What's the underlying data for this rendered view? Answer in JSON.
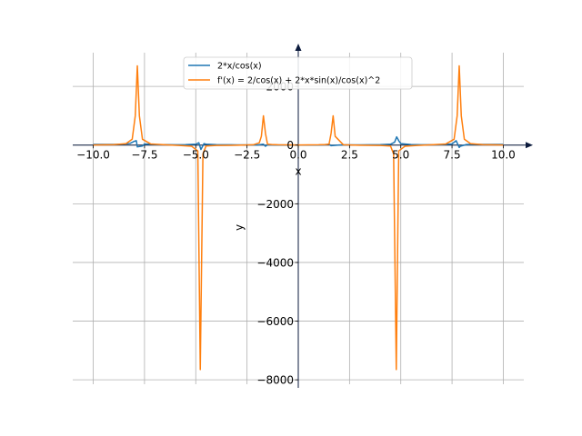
{
  "chart_data": {
    "type": "line",
    "xlabel": "x",
    "ylabel": "y",
    "xlim": [
      -11.0,
      11.0
    ],
    "ylim": [
      -8150,
      3150
    ],
    "xticks": [
      -10.0,
      -7.5,
      -5.0,
      -2.5,
      0.0,
      2.5,
      5.0,
      7.5,
      10.0
    ],
    "xtick_labels": [
      "−10.0",
      "−7.5",
      "−5.0",
      "−2.5",
      "0.0",
      "2.5",
      "5.0",
      "7.5",
      "10.0"
    ],
    "yticks": [
      -8000,
      -6000,
      -4000,
      -2000,
      0,
      2000
    ],
    "ytick_labels": [
      "−8000",
      "−6000",
      "−4000",
      "−2000",
      "0",
      "2000"
    ],
    "grid": true,
    "legend_position": "top-center",
    "series": [
      {
        "name": "2*x/cos(x)",
        "color": "#1f77b4",
        "x": [
          -10.0,
          -9.0,
          -8.5,
          -8.2,
          -8.0,
          -7.9,
          -7.85,
          -7.6,
          -7.5,
          -7.0,
          -6.0,
          -5.5,
          -5.0,
          -4.85,
          -4.75,
          -4.6,
          -4.5,
          -4.0,
          -3.0,
          -2.0,
          -1.7,
          -1.6,
          -1.5,
          -1.0,
          0.0,
          1.0,
          1.4,
          1.5,
          1.6,
          2.0,
          3.0,
          4.0,
          4.5,
          4.7,
          4.8,
          4.9,
          5.0,
          5.5,
          6.0,
          7.0,
          7.5,
          7.7,
          7.85,
          7.9,
          8.0,
          8.2,
          8.5,
          9.0,
          10.0
        ],
        "y": [
          24,
          22,
          30,
          60,
          130,
          150,
          -60,
          -30,
          40,
          20,
          12,
          15,
          30,
          80,
          -150,
          50,
          30,
          15,
          8,
          5,
          30,
          -40,
          10,
          5,
          0,
          5,
          20,
          35,
          -20,
          5,
          8,
          15,
          30,
          100,
          280,
          150,
          50,
          20,
          12,
          15,
          40,
          150,
          -80,
          -40,
          -20,
          20,
          25,
          22,
          24
        ]
      },
      {
        "name": "f'(x) = 2/cos(x) + 2*x*sin(x)/cos(x)^2",
        "color": "#ff7f0e",
        "x": [
          -10.0,
          -9.0,
          -8.4,
          -8.1,
          -7.95,
          -7.85,
          -7.75,
          -7.6,
          -7.2,
          -6.5,
          -5.8,
          -5.2,
          -4.9,
          -4.78,
          -4.65,
          -4.5,
          -4.0,
          -3.0,
          -2.2,
          -1.9,
          -1.8,
          -1.7,
          -1.6,
          -1.5,
          -1.3,
          -1.0,
          0.0,
          1.0,
          1.3,
          1.5,
          1.6,
          1.7,
          1.8,
          2.2,
          3.0,
          4.0,
          4.5,
          4.65,
          4.78,
          4.9,
          5.2,
          5.8,
          6.5,
          7.2,
          7.6,
          7.75,
          7.85,
          7.95,
          8.1,
          8.4,
          9.0,
          10.0
        ],
        "y": [
          5,
          15,
          50,
          200,
          1000,
          2700,
          1000,
          200,
          40,
          10,
          -10,
          -40,
          -200,
          -7650,
          -300,
          -30,
          -10,
          -5,
          10,
          80,
          300,
          1000,
          400,
          30,
          20,
          10,
          2,
          10,
          20,
          30,
          400,
          1000,
          300,
          10,
          -5,
          -10,
          -30,
          -300,
          -7650,
          -200,
          -40,
          -10,
          10,
          40,
          200,
          1000,
          2700,
          1000,
          200,
          50,
          15,
          5
        ]
      }
    ]
  }
}
